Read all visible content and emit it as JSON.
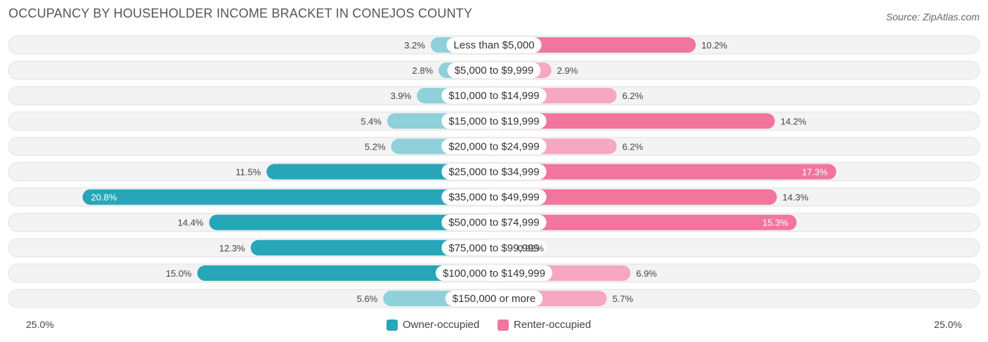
{
  "title": "OCCUPANCY BY HOUSEHOLDER INCOME BRACKET IN CONEJOS COUNTY",
  "source": "Source: ZipAtlas.com",
  "colors": {
    "owner_dark": "#27a6b8",
    "owner_light": "#8fd0da",
    "renter_dark": "#f2759e",
    "renter_light": "#f6a7c2",
    "row_bg": "#efefef"
  },
  "chart_data": {
    "type": "bar",
    "orientation": "horizontal-diverging",
    "categories": [
      "Less than $5,000",
      "$5,000 to $9,999",
      "$10,000 to $14,999",
      "$15,000 to $19,999",
      "$20,000 to $24,999",
      "$25,000 to $34,999",
      "$35,000 to $49,999",
      "$50,000 to $74,999",
      "$75,000 to $99,999",
      "$100,000 to $149,999",
      "$150,000 or more"
    ],
    "series": [
      {
        "name": "Owner-occupied",
        "values": [
          3.2,
          2.8,
          3.9,
          5.4,
          5.2,
          11.5,
          20.8,
          14.4,
          12.3,
          15.0,
          5.6
        ],
        "labels": [
          "3.2%",
          "2.8%",
          "3.9%",
          "5.4%",
          "5.2%",
          "11.5%",
          "20.8%",
          "14.4%",
          "12.3%",
          "15.0%",
          "5.6%"
        ]
      },
      {
        "name": "Renter-occupied",
        "values": [
          10.2,
          2.9,
          6.2,
          14.2,
          6.2,
          17.3,
          14.3,
          15.3,
          0.92,
          6.9,
          5.7
        ],
        "labels": [
          "10.2%",
          "2.9%",
          "6.2%",
          "14.2%",
          "6.2%",
          "17.3%",
          "14.3%",
          "15.3%",
          "0.92%",
          "6.9%",
          "5.7%"
        ]
      }
    ],
    "xlim": [
      -25,
      25
    ],
    "axis_left_label": "25.0%",
    "axis_right_label": "25.0%",
    "legend_position": "bottom-center"
  }
}
